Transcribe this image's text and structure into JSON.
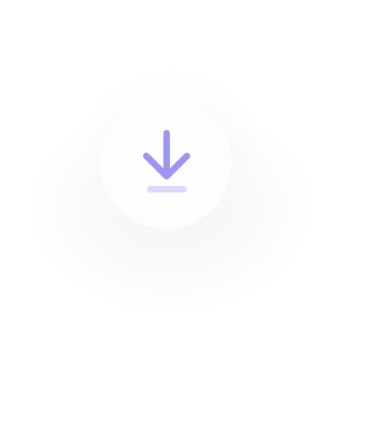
{
  "icon": {
    "name": "download-icon",
    "arrow_color": "#9b96f2",
    "baseline_color": "#dcdaf9"
  }
}
